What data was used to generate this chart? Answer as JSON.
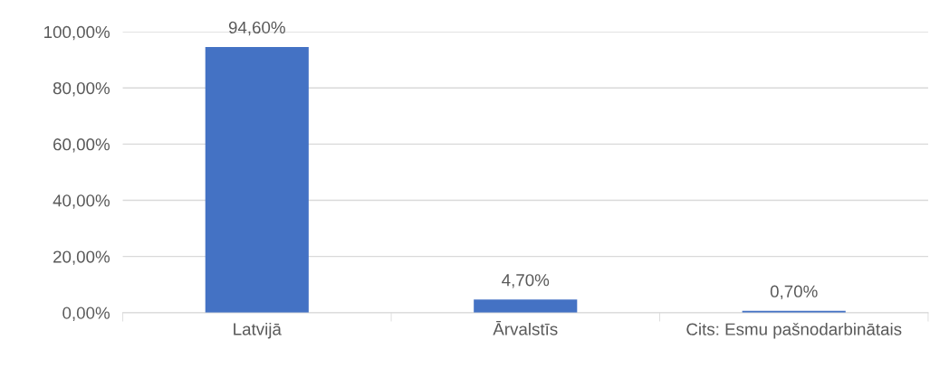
{
  "chart_data": {
    "type": "bar",
    "categories": [
      "Latvijā",
      "Ārvalstīs",
      "Cits: Esmu pašnodarbinātais"
    ],
    "values": [
      94.6,
      4.7,
      0.7
    ],
    "value_labels": [
      "94,60%",
      "4,70%",
      "0,70%"
    ],
    "color": "#4472c4",
    "ylim": [
      0,
      100
    ],
    "yticks": [
      {
        "value": 0,
        "label": "0,00%"
      },
      {
        "value": 20,
        "label": "20,00%"
      },
      {
        "value": 40,
        "label": "40,00%"
      },
      {
        "value": 60,
        "label": "60,00%"
      },
      {
        "value": 80,
        "label": "80,00%"
      },
      {
        "value": 100,
        "label": "100,00%"
      }
    ],
    "grid": "y",
    "legend": false
  }
}
